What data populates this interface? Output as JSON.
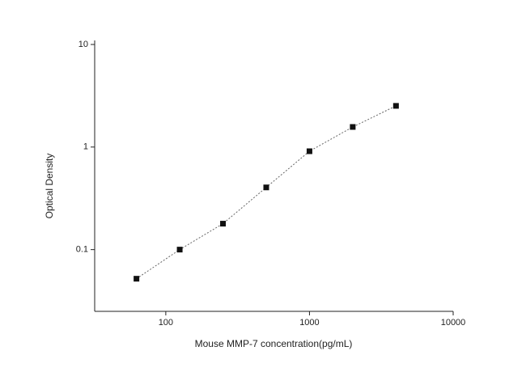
{
  "chart_data": {
    "type": "scatter",
    "x_label": "Mouse MMP-7 concentration(pg/mL)",
    "y_label": "Optical Density",
    "x_log": true,
    "y_log": true,
    "xlim": [
      32,
      10000
    ],
    "ylim": [
      0.025,
      10
    ],
    "xticks": [
      100,
      1000,
      10000
    ],
    "yticks": [
      0.1,
      1,
      10
    ],
    "fit_line": true,
    "series": [
      {
        "color": "#111111",
        "x": [
          62.5,
          125,
          250,
          500,
          1000,
          2000,
          4000
        ],
        "values": [
          0.052,
          0.1,
          0.179,
          0.404,
          0.91,
          1.57,
          2.52
        ]
      }
    ]
  }
}
